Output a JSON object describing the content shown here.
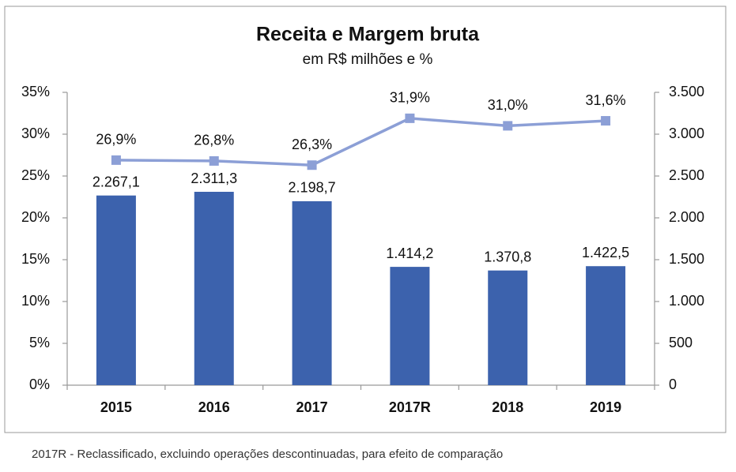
{
  "chart_data": {
    "type": "bar",
    "title": "Receita e Margem bruta",
    "subtitle": "em R$ milhões e %",
    "footnote": "2017R -  Reclassificado, excluindo operações descontinuadas, para efeito de comparação",
    "categories": [
      "2015",
      "2016",
      "2017",
      "2017R",
      "2018",
      "2019"
    ],
    "series": [
      {
        "type": "bar",
        "axis": "y2",
        "color": "#3c62ad",
        "values": [
          2267.1,
          2311.3,
          2198.7,
          1414.2,
          1370.8,
          1422.5
        ],
        "value_labels": [
          "2.267,1",
          "2.311,3",
          "2.198,7",
          "1.414,2",
          "1.370,8",
          "1.422,5"
        ]
      },
      {
        "type": "line",
        "axis": "y",
        "color": "#8c9fd6",
        "values": [
          26.9,
          26.8,
          26.3,
          31.9,
          31.0,
          31.6
        ],
        "value_labels": [
          "26,9%",
          "26,8%",
          "26,3%",
          "31,9%",
          "31,0%",
          "31,6%"
        ]
      }
    ],
    "ylim": [
      0,
      35
    ],
    "yticks": [
      {
        "value": 0,
        "label": "0%"
      },
      {
        "value": 5,
        "label": "5%"
      },
      {
        "value": 10,
        "label": "10%"
      },
      {
        "value": 15,
        "label": "15%"
      },
      {
        "value": 20,
        "label": "20%"
      },
      {
        "value": 25,
        "label": "25%"
      },
      {
        "value": 30,
        "label": "30%"
      },
      {
        "value": 35,
        "label": "35%"
      }
    ],
    "y2lim": [
      0,
      3500
    ],
    "y2ticks": [
      0,
      500,
      {
        "value": 1000,
        "label": "1.000"
      },
      {
        "value": 1500,
        "label": "1.500"
      },
      {
        "value": 2000,
        "label": "2.000"
      },
      {
        "value": 2500,
        "label": "2.500"
      },
      {
        "value": 3000,
        "label": "3.000"
      },
      {
        "value": 3500,
        "label": "3.500"
      }
    ],
    "grid": false
  }
}
